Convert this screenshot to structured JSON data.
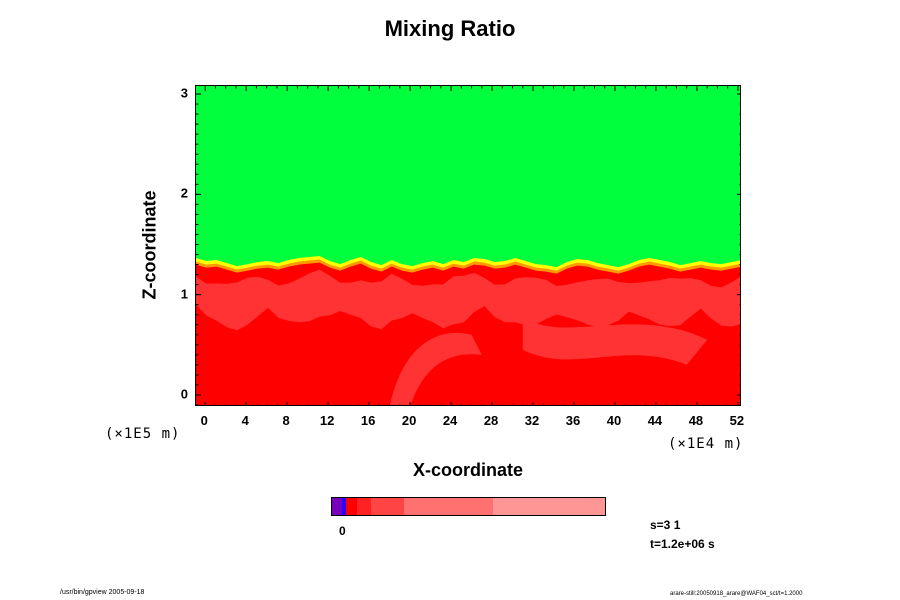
{
  "chart_data": {
    "type": "heatmap",
    "title": "Mixing Ratio",
    "xlabel": "X-coordinate",
    "ylabel": "Z-coordinate",
    "x_ticks": [
      "0",
      "4",
      "8",
      "12",
      "16",
      "20",
      "24",
      "28",
      "32",
      "36",
      "40",
      "44",
      "48",
      "52"
    ],
    "y_ticks": [
      "0",
      "1",
      "2",
      "3"
    ],
    "x_scale_label": "(×1E4 m)",
    "y_scale_label": "(×1E5 m)",
    "xlim": [
      -0.9,
      52.4
    ],
    "ylim": [
      -0.12,
      3.08
    ],
    "interface_height": [
      1.33,
      1.3,
      1.31,
      1.28,
      1.25,
      1.27,
      1.29,
      1.3,
      1.28,
      1.31,
      1.33,
      1.34,
      1.35,
      1.3,
      1.27,
      1.31,
      1.34,
      1.29,
      1.26,
      1.31,
      1.27,
      1.25,
      1.28,
      1.3,
      1.27,
      1.31,
      1.29,
      1.33,
      1.32,
      1.29,
      1.3,
      1.33,
      1.3,
      1.27,
      1.26,
      1.24,
      1.29,
      1.32,
      1.31,
      1.28,
      1.26,
      1.24,
      1.27,
      1.31,
      1.33,
      1.31,
      1.29,
      1.26,
      1.28,
      1.3,
      1.28,
      1.27,
      1.29,
      1.31
    ],
    "region_colors": {
      "upper": "#00ff3c",
      "lower": "#ff0000",
      "mixed": "#ff3333",
      "transition_1": "#ffff00",
      "transition_2": "#ff9900"
    },
    "colorbar": {
      "colors": [
        "#7700bb",
        "#2b00ff",
        "#ff0000",
        "#ff2222",
        "#ff4444",
        "#ff7070",
        "#ff9696"
      ],
      "fractions": [
        0.035,
        0.018,
        0.04,
        0.05,
        0.12,
        0.33,
        0.41
      ],
      "label": "0"
    }
  },
  "info": {
    "line1": "s=3 1",
    "line2": "t=1.2e+06 s"
  },
  "footer": {
    "left": "/usr/bin/gpview 2005-09-18",
    "right": "arare-still:20050918_arare@WAF04_sct/t=1.2000"
  }
}
